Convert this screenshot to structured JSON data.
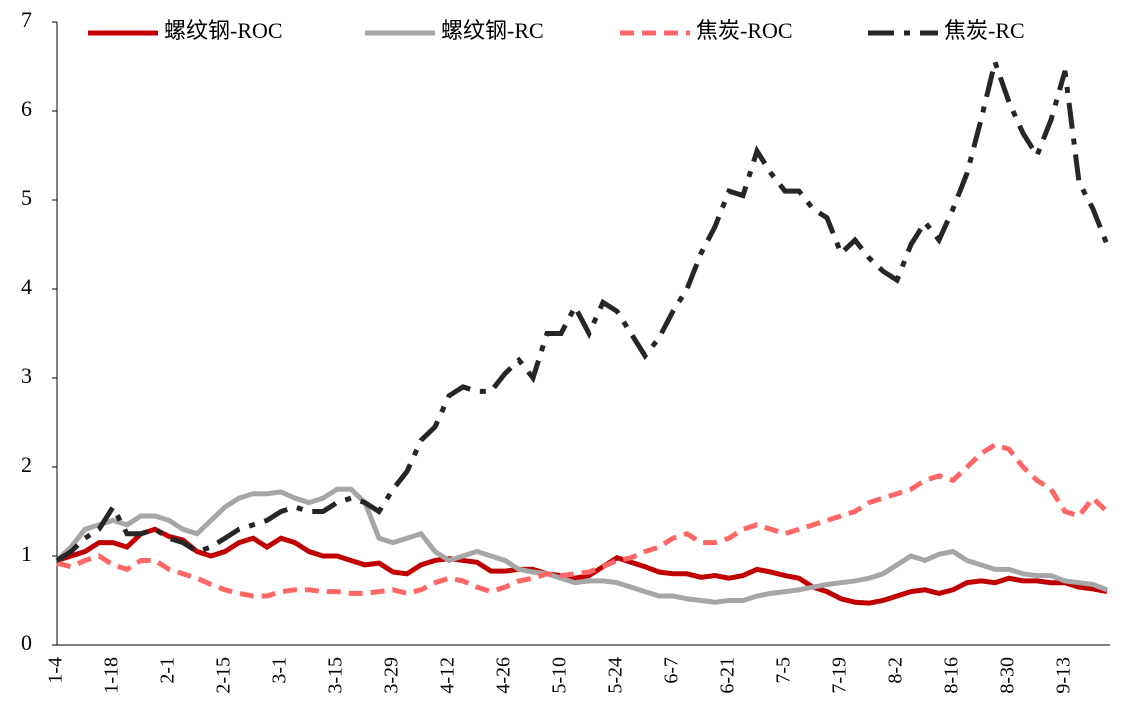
{
  "chart_data": {
    "type": "line",
    "categories": [
      "1-4",
      null,
      null,
      null,
      "1-18",
      null,
      null,
      null,
      "2-1",
      null,
      null,
      null,
      "2-15",
      null,
      null,
      null,
      "3-1",
      null,
      null,
      null,
      "3-15",
      null,
      null,
      null,
      "3-29",
      null,
      null,
      null,
      "4-12",
      null,
      null,
      null,
      "4-26",
      null,
      null,
      null,
      "5-10",
      null,
      null,
      null,
      "5-24",
      null,
      null,
      null,
      "6-7",
      null,
      null,
      null,
      "6-21",
      null,
      null,
      null,
      "7-5",
      null,
      null,
      null,
      "7-19",
      null,
      null,
      null,
      "8-2",
      null,
      null,
      null,
      "8-16",
      null,
      null,
      null,
      "8-30",
      null,
      null,
      null,
      "9-13",
      null,
      null,
      null
    ],
    "series": [
      {
        "name": "螺纹钢-ROC",
        "color": "#c00000",
        "dash": "solid",
        "values": [
          0.95,
          1.0,
          1.05,
          1.15,
          1.15,
          1.1,
          1.25,
          1.3,
          1.22,
          1.18,
          1.05,
          1.0,
          1.05,
          1.15,
          1.2,
          1.1,
          1.2,
          1.15,
          1.05,
          1.0,
          1.0,
          0.95,
          0.9,
          0.92,
          0.82,
          0.8,
          0.9,
          0.95,
          0.97,
          0.95,
          0.93,
          0.83,
          0.83,
          0.85,
          0.85,
          0.8,
          0.78,
          0.75,
          0.78,
          0.88,
          0.98,
          0.93,
          0.88,
          0.82,
          0.8,
          0.8,
          0.76,
          0.78,
          0.75,
          0.78,
          0.85,
          0.82,
          0.78,
          0.75,
          0.65,
          0.6,
          0.52,
          0.48,
          0.47,
          0.5,
          0.55,
          0.6,
          0.62,
          0.58,
          0.62,
          0.7,
          0.72,
          0.7,
          0.75,
          0.72,
          0.72,
          0.7,
          0.7,
          0.65,
          0.63,
          0.6
        ]
      },
      {
        "name": "螺纹钢-RC",
        "color": "#a6a6a6",
        "dash": "solid",
        "values": [
          0.95,
          1.1,
          1.3,
          1.35,
          1.4,
          1.35,
          1.45,
          1.45,
          1.4,
          1.3,
          1.25,
          1.4,
          1.55,
          1.65,
          1.7,
          1.7,
          1.72,
          1.65,
          1.6,
          1.65,
          1.75,
          1.75,
          1.6,
          1.2,
          1.15,
          1.2,
          1.25,
          1.05,
          0.95,
          1.0,
          1.05,
          1.0,
          0.95,
          0.85,
          0.82,
          0.8,
          0.75,
          0.7,
          0.72,
          0.72,
          0.7,
          0.65,
          0.6,
          0.55,
          0.55,
          0.52,
          0.5,
          0.48,
          0.5,
          0.5,
          0.55,
          0.58,
          0.6,
          0.62,
          0.65,
          0.68,
          0.7,
          0.72,
          0.75,
          0.8,
          0.9,
          1.0,
          0.95,
          1.02,
          1.05,
          0.95,
          0.9,
          0.85,
          0.85,
          0.8,
          0.78,
          0.78,
          0.72,
          0.7,
          0.68,
          0.62
        ]
      },
      {
        "name": "焦炭-ROC",
        "color": "#ff6666",
        "dash": "dashed",
        "values": [
          0.92,
          0.88,
          0.95,
          1.0,
          0.9,
          0.85,
          0.95,
          0.95,
          0.85,
          0.8,
          0.75,
          0.68,
          0.62,
          0.58,
          0.55,
          0.55,
          0.6,
          0.62,
          0.62,
          0.6,
          0.6,
          0.58,
          0.58,
          0.6,
          0.62,
          0.58,
          0.62,
          0.7,
          0.75,
          0.72,
          0.65,
          0.6,
          0.65,
          0.72,
          0.75,
          0.8,
          0.78,
          0.8,
          0.82,
          0.88,
          0.95,
          0.98,
          1.05,
          1.1,
          1.2,
          1.25,
          1.15,
          1.15,
          1.2,
          1.3,
          1.35,
          1.3,
          1.25,
          1.3,
          1.35,
          1.4,
          1.45,
          1.5,
          1.6,
          1.65,
          1.7,
          1.75,
          1.85,
          1.9,
          1.85,
          2.0,
          2.15,
          2.25,
          2.2,
          2.0,
          1.85,
          1.75,
          1.5,
          1.45,
          1.65,
          1.5
        ]
      },
      {
        "name": "焦炭-RC",
        "color": "#262626",
        "dash": "dashdot",
        "values": [
          0.95,
          1.05,
          1.2,
          1.3,
          1.55,
          1.25,
          1.25,
          1.3,
          1.2,
          1.15,
          1.05,
          1.1,
          1.2,
          1.3,
          1.35,
          1.4,
          1.5,
          1.55,
          1.5,
          1.5,
          1.6,
          1.65,
          1.6,
          1.5,
          1.75,
          1.95,
          2.3,
          2.45,
          2.8,
          2.9,
          2.85,
          2.85,
          3.05,
          3.2,
          3.0,
          3.5,
          3.5,
          3.8,
          3.5,
          3.85,
          3.75,
          3.5,
          3.25,
          3.45,
          3.75,
          4.0,
          4.4,
          4.7,
          5.1,
          5.05,
          5.55,
          5.3,
          5.1,
          5.1,
          4.9,
          4.8,
          4.4,
          4.55,
          4.35,
          4.2,
          4.1,
          4.5,
          4.75,
          4.55,
          4.9,
          5.3,
          5.9,
          6.55,
          6.1,
          5.75,
          5.5,
          5.9,
          6.45,
          5.2,
          4.9,
          4.5
        ]
      }
    ],
    "ylim": [
      0,
      7
    ],
    "yticks": [
      0,
      1,
      2,
      3,
      4,
      5,
      6,
      7
    ],
    "grid": false,
    "legend": "top"
  }
}
